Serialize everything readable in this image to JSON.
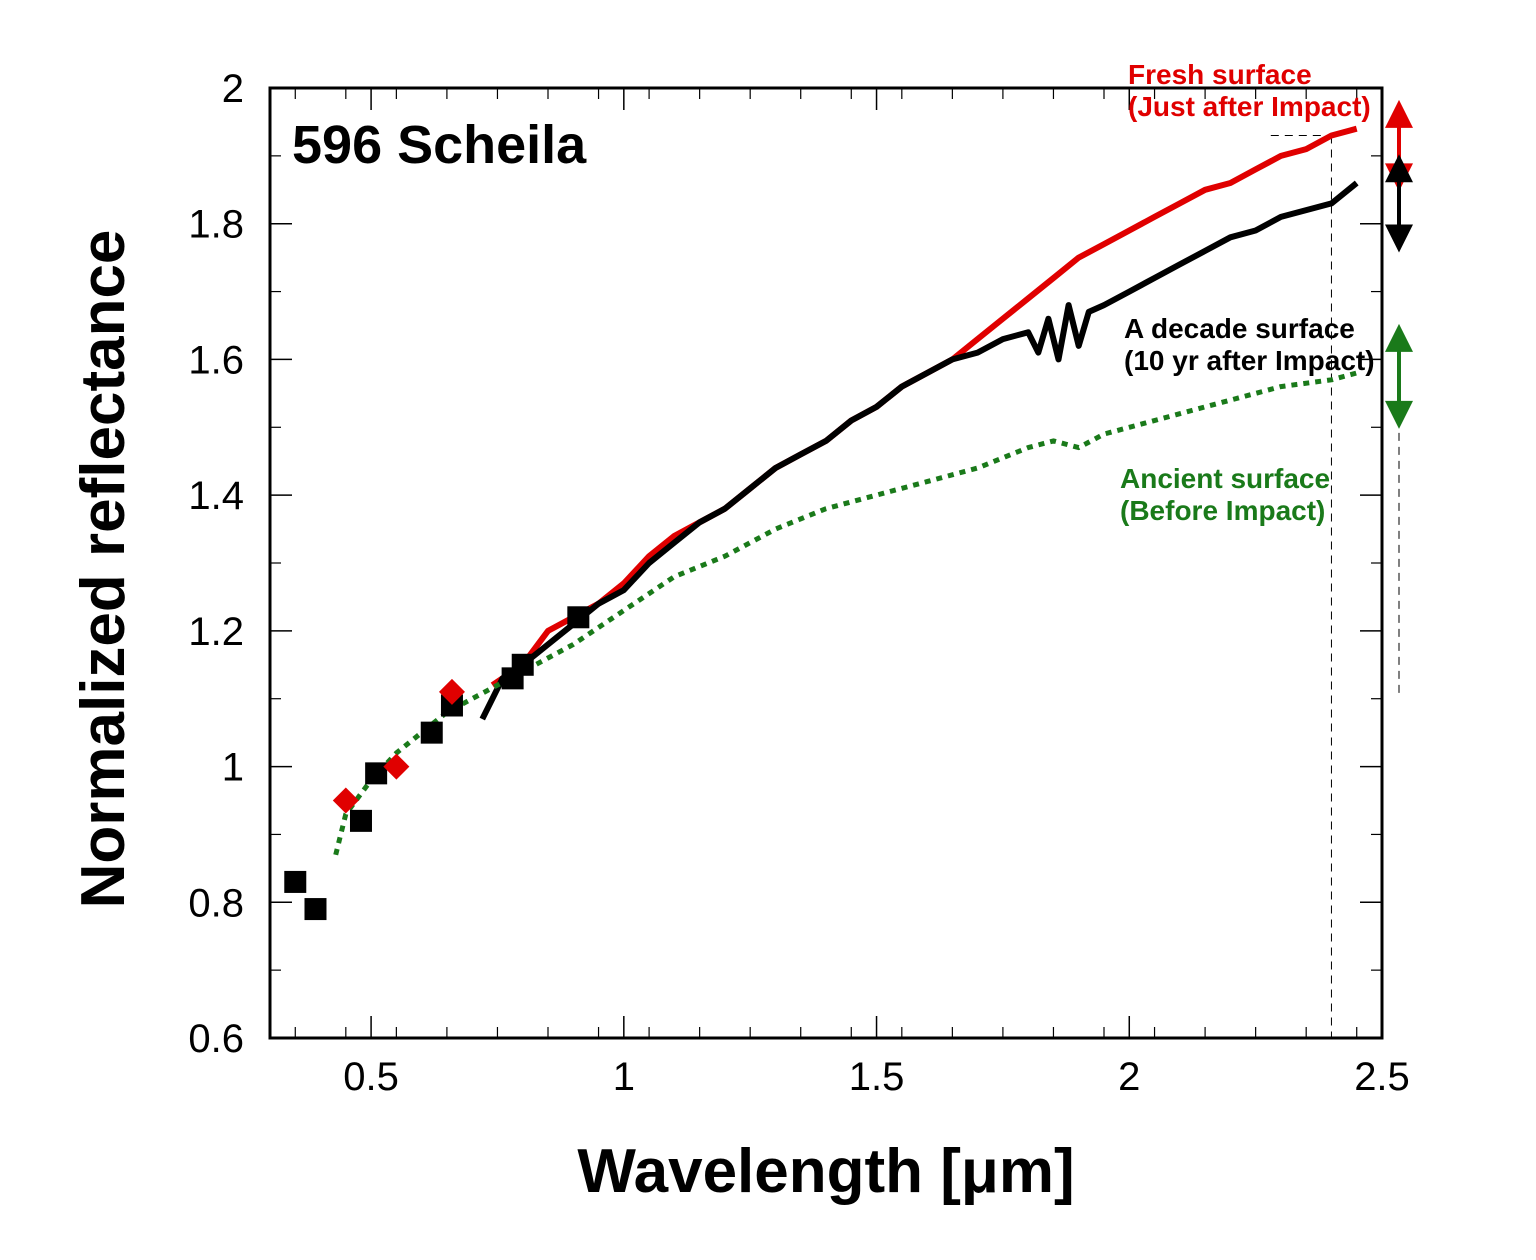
{
  "chart_data": {
    "type": "line",
    "title": "596 Scheila",
    "xlabel": "Wavelength [μm]",
    "ylabel": "Normalized reflectance",
    "xlim": [
      0.3,
      2.5
    ],
    "ylim": [
      0.6,
      2.0
    ],
    "xticks": [
      0.5,
      1,
      1.5,
      2,
      2.5
    ],
    "xtick_labels": [
      "0.5",
      "1",
      "1.5",
      "2",
      "2.5"
    ],
    "yticks": [
      0.6,
      0.8,
      1,
      1.2,
      1.4,
      1.6,
      1.8,
      2
    ],
    "ytick_labels": [
      "0.6",
      "0.8",
      "1",
      "1.2",
      "1.4",
      "1.6",
      "1.8",
      "2"
    ],
    "grid": false,
    "colors": {
      "fresh": "#e00000",
      "decade": "#000000",
      "ancient": "#1a7a1a"
    },
    "annotations": [
      {
        "id": "fresh",
        "lines": [
          "Fresh surface",
          "(Just after Impact)"
        ],
        "color": "#e00000"
      },
      {
        "id": "decade",
        "lines": [
          "A decade surface",
          "(10 yr after Impact)"
        ],
        "color": "#000000"
      },
      {
        "id": "ancient",
        "lines": [
          "Ancient surface",
          "(Before Impact)"
        ],
        "color": "#1a7a1a"
      }
    ],
    "series": [
      {
        "id": "fresh",
        "style": "line",
        "color": "#e00000",
        "x": [
          0.74,
          0.8,
          0.85,
          0.9,
          0.95,
          1.0,
          1.05,
          1.1,
          1.15,
          1.2,
          1.25,
          1.3,
          1.35,
          1.4,
          1.45,
          1.5,
          1.55,
          1.6,
          1.65,
          1.7,
          1.75,
          1.8,
          1.85,
          1.9,
          1.95,
          2.0,
          2.05,
          2.1,
          2.15,
          2.2,
          2.25,
          2.3,
          2.35,
          2.4,
          2.45
        ],
        "y": [
          1.12,
          1.15,
          1.2,
          1.22,
          1.24,
          1.27,
          1.31,
          1.34,
          1.36,
          1.38,
          1.41,
          1.44,
          1.46,
          1.48,
          1.51,
          1.53,
          1.56,
          1.58,
          1.6,
          1.63,
          1.66,
          1.69,
          1.72,
          1.75,
          1.77,
          1.79,
          1.81,
          1.83,
          1.85,
          1.86,
          1.88,
          1.9,
          1.91,
          1.93,
          1.94
        ]
      },
      {
        "id": "decade",
        "style": "line",
        "color": "#000000",
        "x": [
          0.72,
          0.76,
          0.8,
          0.85,
          0.9,
          0.95,
          1.0,
          1.05,
          1.1,
          1.15,
          1.2,
          1.25,
          1.3,
          1.35,
          1.4,
          1.45,
          1.5,
          1.55,
          1.6,
          1.65,
          1.7,
          1.75,
          1.8,
          1.82,
          1.84,
          1.86,
          1.88,
          1.9,
          1.92,
          1.95,
          2.0,
          2.05,
          2.1,
          2.15,
          2.2,
          2.25,
          2.3,
          2.35,
          2.4,
          2.45
        ],
        "y": [
          1.07,
          1.13,
          1.15,
          1.18,
          1.21,
          1.24,
          1.26,
          1.3,
          1.33,
          1.36,
          1.38,
          1.41,
          1.44,
          1.46,
          1.48,
          1.51,
          1.53,
          1.56,
          1.58,
          1.6,
          1.61,
          1.63,
          1.64,
          1.61,
          1.66,
          1.6,
          1.68,
          1.62,
          1.67,
          1.68,
          1.7,
          1.72,
          1.74,
          1.76,
          1.78,
          1.79,
          1.81,
          1.82,
          1.83,
          1.86
        ]
      },
      {
        "id": "ancient",
        "style": "dotted",
        "color": "#1a7a1a",
        "x": [
          0.43,
          0.45,
          0.5,
          0.55,
          0.6,
          0.65,
          0.7,
          0.75,
          0.8,
          0.85,
          0.9,
          1.0,
          1.1,
          1.2,
          1.3,
          1.4,
          1.5,
          1.6,
          1.7,
          1.8,
          1.85,
          1.9,
          1.95,
          2.0,
          2.1,
          2.2,
          2.3,
          2.4,
          2.45
        ],
        "y": [
          0.87,
          0.93,
          0.98,
          1.02,
          1.05,
          1.08,
          1.1,
          1.12,
          1.14,
          1.16,
          1.18,
          1.23,
          1.28,
          1.31,
          1.35,
          1.38,
          1.4,
          1.42,
          1.44,
          1.47,
          1.48,
          1.47,
          1.49,
          1.5,
          1.52,
          1.54,
          1.56,
          1.57,
          1.58
        ]
      },
      {
        "id": "decade-photometry",
        "style": "square-markers",
        "color": "#000000",
        "x": [
          0.35,
          0.39,
          0.48,
          0.51,
          0.62,
          0.66,
          0.78,
          0.8,
          0.91
        ],
        "y": [
          0.83,
          0.79,
          0.92,
          0.99,
          1.05,
          1.09,
          1.13,
          1.15,
          1.22
        ]
      },
      {
        "id": "fresh-photometry",
        "style": "diamond-markers",
        "color": "#e00000",
        "x": [
          0.45,
          0.55,
          0.66
        ],
        "y": [
          0.95,
          1.0,
          1.11
        ]
      }
    ],
    "range_markers": [
      {
        "id": "fresh",
        "color": "#e00000",
        "y_high": 1.95,
        "y_low": 1.88
      },
      {
        "id": "decade",
        "color": "#000000",
        "y_high": 1.87,
        "y_low": 1.79
      },
      {
        "id": "ancient",
        "color": "#1a7a1a",
        "y_high": 1.62,
        "y_low": 1.53
      }
    ]
  }
}
